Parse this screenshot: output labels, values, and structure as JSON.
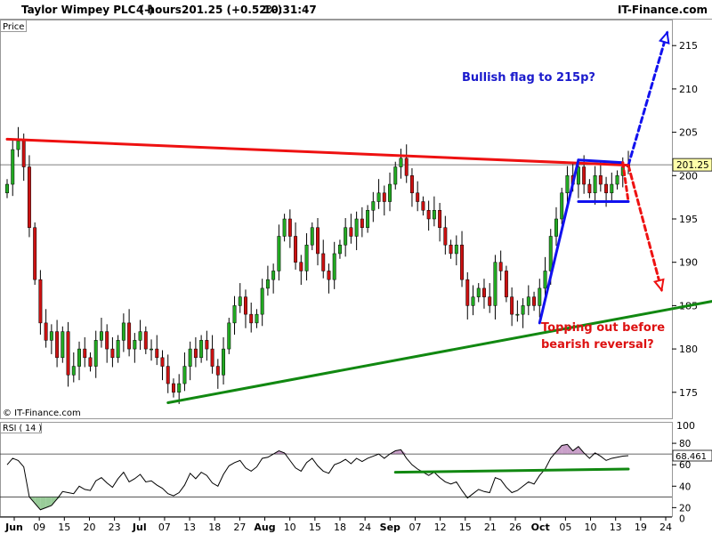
{
  "header": {
    "instrument": "Taylor Wimpey PLC (-)",
    "interval": "4 hours",
    "quote": "201.25 (+0.52%)",
    "time": "10:31:47",
    "brand": "IT-Finance.com"
  },
  "price_panel": {
    "label": "Price",
    "watermark": "© IT-Finance.com"
  },
  "rsi_panel": {
    "label": "RSI ( 14 )"
  },
  "annotations": {
    "bullish": "Bullish flag to 215p?",
    "bearish_line1": "Topping out before",
    "bearish_line2": "bearish reversal?"
  },
  "colors": {
    "resistance": "#ee1111",
    "support": "#118811",
    "flag": "#1111ee",
    "candle_up": "#22aa22",
    "candle_down": "#cc1111",
    "bullish_text": "#1a1acc",
    "bearish_text": "#dd1111",
    "rsi_line": "#000000",
    "rsi_overbought_fill": "#c9a0c9",
    "rsi_oversold_fill": "#99cc99"
  },
  "chart_data": [
    {
      "type": "candlestick",
      "ylim": [
        172,
        218
      ],
      "y_ticks": [
        175,
        180,
        185,
        190,
        195,
        200,
        205,
        210,
        215
      ],
      "last_price": 201.25,
      "x_ticks": [
        {
          "label": "Jun",
          "bold": true
        },
        {
          "label": "09",
          "bold": false
        },
        {
          "label": "15",
          "bold": false
        },
        {
          "label": "20",
          "bold": false
        },
        {
          "label": "23",
          "bold": false
        },
        {
          "label": "Jul",
          "bold": true
        },
        {
          "label": "07",
          "bold": false
        },
        {
          "label": "13",
          "bold": false
        },
        {
          "label": "18",
          "bold": false
        },
        {
          "label": "27",
          "bold": false
        },
        {
          "label": "Aug",
          "bold": true
        },
        {
          "label": "10",
          "bold": false
        },
        {
          "label": "15",
          "bold": false
        },
        {
          "label": "18",
          "bold": false
        },
        {
          "label": "24",
          "bold": false
        },
        {
          "label": "Sep",
          "bold": true
        },
        {
          "label": "07",
          "bold": false
        },
        {
          "label": "12",
          "bold": false
        },
        {
          "label": "15",
          "bold": false
        },
        {
          "label": "21",
          "bold": false
        },
        {
          "label": "26",
          "bold": false
        },
        {
          "label": "Oct",
          "bold": true
        },
        {
          "label": "05",
          "bold": false
        },
        {
          "label": "10",
          "bold": false
        },
        {
          "label": "13",
          "bold": false
        },
        {
          "label": "19",
          "bold": false
        },
        {
          "label": "24",
          "bold": false
        }
      ],
      "closes": [
        199,
        203,
        204,
        201,
        194,
        188,
        183,
        181,
        182,
        179,
        182,
        177,
        178,
        180,
        179,
        178,
        181,
        182,
        180,
        179,
        181,
        183,
        180,
        181,
        182,
        180,
        180,
        179,
        178,
        176,
        175,
        176,
        178,
        180,
        179,
        181,
        180,
        178,
        177,
        180,
        183,
        185,
        186,
        184,
        183,
        184,
        187,
        188,
        189,
        193,
        195,
        193,
        190,
        189,
        192,
        194,
        191,
        189,
        188,
        191,
        192,
        194,
        193,
        195,
        194,
        196,
        197,
        198,
        197,
        199,
        201,
        202,
        200,
        198,
        197,
        196,
        195,
        196,
        194,
        192,
        191,
        192,
        188,
        185,
        186,
        187,
        186,
        185,
        190,
        189,
        186,
        184,
        184,
        185,
        186,
        185,
        187,
        189,
        193,
        195,
        198,
        200,
        199,
        201,
        199,
        198,
        200,
        199,
        198,
        199,
        200,
        201,
        201.25
      ],
      "ohlc_note": "",
      "resistance_line": {
        "from": [
          0,
          204.2
        ],
        "to": [
          112,
          201.2
        ]
      },
      "support_line": {
        "from": [
          29,
          173.8
        ],
        "to": [
          133,
          186.2
        ]
      },
      "flag": {
        "pole": [
          [
            96,
            183.0
          ],
          [
            103,
            201.8
          ]
        ],
        "top": [
          [
            103,
            201.8
          ],
          [
            111,
            201.5
          ]
        ],
        "bottom": [
          [
            103,
            197.0
          ],
          [
            112,
            197.0
          ]
        ],
        "right": [
          [
            111,
            201.5
          ],
          [
            112,
            197.0
          ]
        ]
      },
      "projection_up": {
        "from": [
          112,
          201.2
        ],
        "to": [
          119,
          216.5
        ]
      },
      "projection_down": {
        "from": [
          112,
          201.2
        ],
        "to": [
          118,
          186.8
        ]
      }
    },
    {
      "type": "line",
      "name": "RSI ( 14 )",
      "ylim": [
        12,
        100
      ],
      "y_ticks": [
        20,
        40,
        60,
        80
      ],
      "levels": [
        30,
        70
      ],
      "last_value": "68.461",
      "values": [
        60,
        66,
        64,
        58,
        30,
        24,
        18,
        20,
        22,
        28,
        35,
        34,
        33,
        40,
        37,
        36,
        45,
        48,
        43,
        39,
        47,
        53,
        44,
        47,
        51,
        44,
        45,
        41,
        38,
        33,
        31,
        34,
        41,
        52,
        47,
        53,
        50,
        43,
        40,
        51,
        59,
        62,
        64,
        57,
        54,
        58,
        66,
        67,
        70,
        73,
        71,
        64,
        57,
        54,
        62,
        66,
        59,
        54,
        52,
        60,
        62,
        65,
        61,
        66,
        63,
        66,
        68,
        70,
        66,
        70,
        73,
        74,
        66,
        60,
        56,
        53,
        50,
        53,
        48,
        44,
        42,
        44,
        36,
        29,
        33,
        37,
        35,
        34,
        48,
        46,
        39,
        34,
        36,
        40,
        44,
        42,
        50,
        56,
        66,
        72,
        78,
        79,
        73,
        77,
        71,
        66,
        71,
        68,
        64,
        66,
        67,
        68,
        68.461
      ],
      "trend_line": {
        "from": [
          70,
          53
        ],
        "to": [
          112,
          56
        ]
      }
    }
  ]
}
